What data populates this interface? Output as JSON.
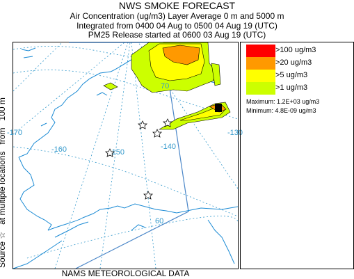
{
  "header": {
    "title": "NWS SMOKE FORECAST",
    "line1": "Air Concentration (ug/m3) Layer Average    0 m and  5000 m",
    "line2": "Integrated from 0400 04 Aug to 0500 04 Aug 19 (UTC)",
    "line3": "PM25 Release started at 0600 03 Aug 19 (UTC)"
  },
  "side_label": {
    "source": "Source ☆",
    "locations": "at multiple locations",
    "from": "from",
    "height": "100 m"
  },
  "footer": "NAMS METEOROLOGICAL DATA",
  "map": {
    "lat_labels": [
      "70",
      "60"
    ],
    "lon_labels": [
      "-170",
      "-160",
      "-150",
      "-140",
      "-130"
    ],
    "colors": {
      "coast": "#1a8ad4",
      "grid": "#3399cc",
      "domain": "#4a86c8",
      "contour": "#000000"
    },
    "sources_count": 5
  },
  "legend": {
    "levels": [
      {
        "label": ">100 ug/m3",
        "color": "#ff0000"
      },
      {
        "label": ">20 ug/m3",
        "color": "#ff9900"
      },
      {
        "label": ">5 ug/m3",
        "color": "#ffff00"
      },
      {
        "label": ">1 ug/m3",
        "color": "#ccff00"
      }
    ],
    "maximum": "Maximum: 1.2E+03 ug/m3",
    "minimum": "Minimum: 4.8E-09 ug/m3"
  }
}
